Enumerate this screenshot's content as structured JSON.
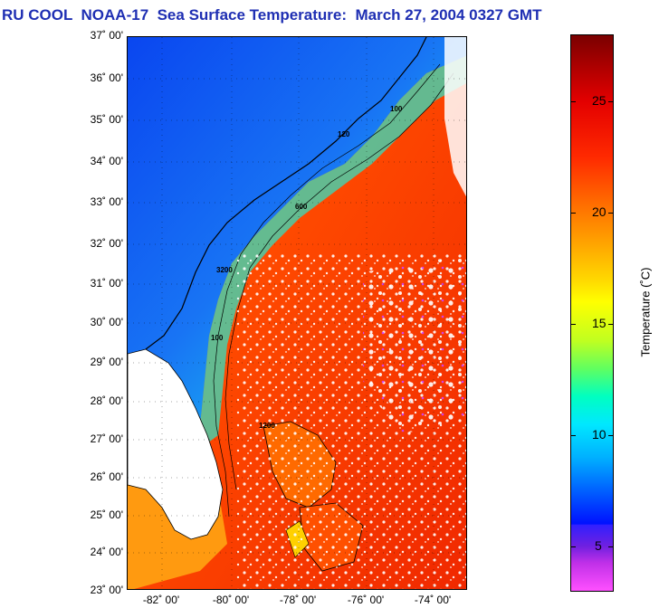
{
  "header": {
    "title": "RU COOL  NOAA-17  Sea Surface Temperature:  March 27, 2004 0327 GMT"
  },
  "map": {
    "latitude_labels": [
      "37˚ 00'",
      "36˚ 00'",
      "35˚ 00'",
      "34˚ 00'",
      "33˚ 00'",
      "32˚ 00'",
      "31˚ 00'",
      "30˚ 00'",
      "29˚ 00'",
      "28˚ 00'",
      "27˚ 00'",
      "26˚ 00'",
      "25˚ 00'",
      "24˚ 00'",
      "23˚ 00'"
    ],
    "longitude_labels": [
      "-82˚ 00'",
      "-80˚ 00'",
      "-78˚ 00'",
      "-76˚ 00'",
      "-74˚ 00'"
    ],
    "contour_labels": [
      "100",
      "120",
      "600",
      "1200",
      "3200",
      "100"
    ]
  },
  "colorbar": {
    "ticks": [
      "25",
      "20",
      "15",
      "10",
      "5"
    ],
    "label": "Temperature (˚C)",
    "range": [
      3,
      28
    ]
  },
  "colors": {
    "title": "#1f2fb3",
    "cold": "#0040ff",
    "shelf": "#00d8e0",
    "warm": "#ff3000",
    "land": "#ffffff"
  }
}
